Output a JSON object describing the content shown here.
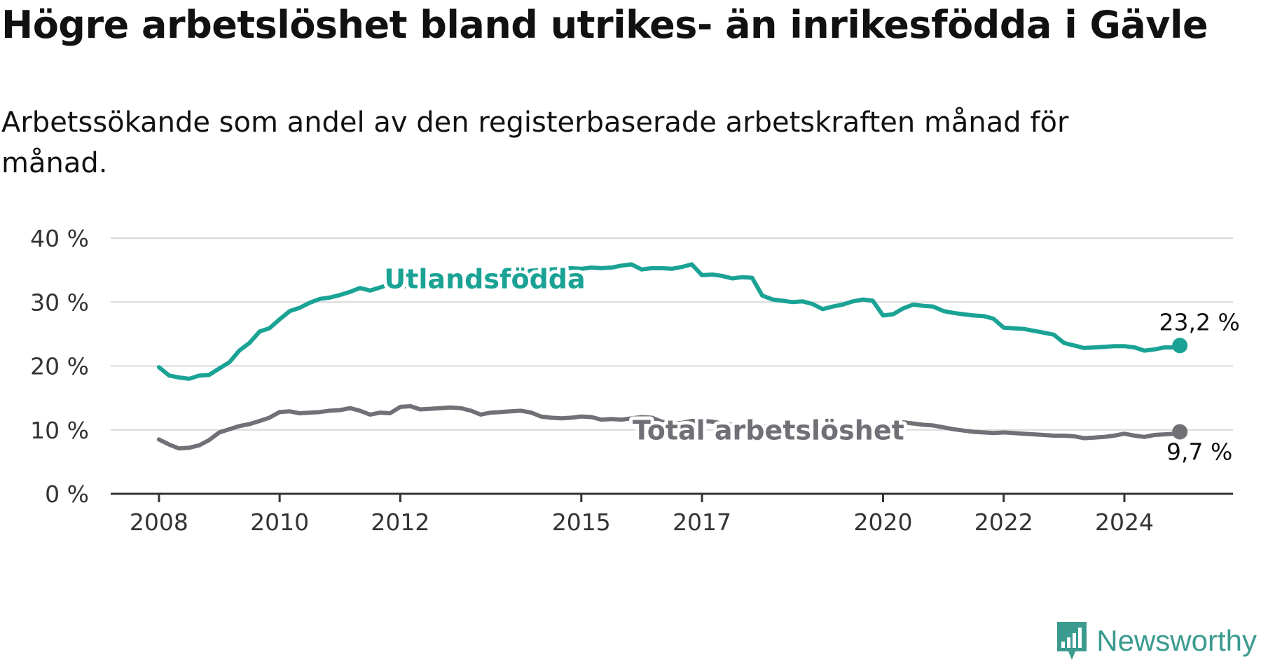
{
  "title": "Högre arbetslöshet bland utrikes- än inrikesfödda i Gävle",
  "subtitle": "Arbetssökande som andel av den registerbaserade arbetskraften månad för månad.",
  "brand": {
    "name": "Newsworthy",
    "color": "#3a9b8e"
  },
  "chart_data": {
    "type": "line",
    "x_ticks": [
      "2008",
      "2010",
      "2012",
      "2015",
      "2017",
      "2020",
      "2022",
      "2024"
    ],
    "y_ticks": [
      "0 %",
      "10 %",
      "20 %",
      "30 %",
      "40 %"
    ],
    "ylim": [
      0,
      40
    ],
    "xlim": [
      2007.2,
      2025.8
    ],
    "grid": true,
    "series": [
      {
        "name": "Utlandsfödda",
        "color": "#1aa395",
        "end_label": "23,2 %",
        "points": [
          [
            2008.0,
            19.8
          ],
          [
            2008.17,
            18.5
          ],
          [
            2008.33,
            18.2
          ],
          [
            2008.5,
            18.0
          ],
          [
            2008.67,
            18.5
          ],
          [
            2008.83,
            18.6
          ],
          [
            2009.0,
            19.6
          ],
          [
            2009.17,
            20.6
          ],
          [
            2009.33,
            22.4
          ],
          [
            2009.5,
            23.6
          ],
          [
            2009.67,
            25.4
          ],
          [
            2009.83,
            25.9
          ],
          [
            2010.0,
            27.3
          ],
          [
            2010.17,
            28.6
          ],
          [
            2010.33,
            29.1
          ],
          [
            2010.5,
            29.9
          ],
          [
            2010.67,
            30.5
          ],
          [
            2010.83,
            30.7
          ],
          [
            2011.0,
            31.1
          ],
          [
            2011.17,
            31.6
          ],
          [
            2011.33,
            32.2
          ],
          [
            2011.5,
            31.8
          ],
          [
            2011.67,
            32.3
          ],
          [
            2011.83,
            32.8
          ],
          [
            2012.0,
            32.4
          ],
          [
            2012.17,
            32.6
          ],
          [
            2012.33,
            33.0
          ],
          [
            2012.5,
            33.2
          ],
          [
            2012.67,
            33.4
          ],
          [
            2012.83,
            33.5
          ],
          [
            2013.0,
            33.3
          ],
          [
            2013.17,
            33.1
          ],
          [
            2013.33,
            33.0
          ],
          [
            2013.5,
            33.4
          ],
          [
            2013.67,
            33.9
          ],
          [
            2013.83,
            34.3
          ],
          [
            2014.0,
            34.6
          ],
          [
            2014.17,
            34.9
          ],
          [
            2014.33,
            35.0
          ],
          [
            2014.5,
            35.1
          ],
          [
            2014.67,
            35.2
          ],
          [
            2014.83,
            35.3
          ],
          [
            2015.0,
            35.2
          ],
          [
            2015.17,
            35.4
          ],
          [
            2015.33,
            35.3
          ],
          [
            2015.5,
            35.4
          ],
          [
            2015.67,
            35.7
          ],
          [
            2015.83,
            35.9
          ],
          [
            2016.0,
            35.1
          ],
          [
            2016.17,
            35.3
          ],
          [
            2016.33,
            35.3
          ],
          [
            2016.5,
            35.2
          ],
          [
            2016.67,
            35.5
          ],
          [
            2016.83,
            35.9
          ],
          [
            2017.0,
            34.2
          ],
          [
            2017.17,
            34.3
          ],
          [
            2017.33,
            34.1
          ],
          [
            2017.5,
            33.7
          ],
          [
            2017.67,
            33.9
          ],
          [
            2017.83,
            33.8
          ],
          [
            2018.0,
            31.0
          ],
          [
            2018.17,
            30.4
          ],
          [
            2018.33,
            30.2
          ],
          [
            2018.5,
            30.0
          ],
          [
            2018.67,
            30.1
          ],
          [
            2018.83,
            29.7
          ],
          [
            2019.0,
            28.9
          ],
          [
            2019.17,
            29.3
          ],
          [
            2019.33,
            29.6
          ],
          [
            2019.5,
            30.1
          ],
          [
            2019.67,
            30.4
          ],
          [
            2019.83,
            30.2
          ],
          [
            2020.0,
            27.9
          ],
          [
            2020.17,
            28.1
          ],
          [
            2020.33,
            29.0
          ],
          [
            2020.5,
            29.6
          ],
          [
            2020.67,
            29.4
          ],
          [
            2020.83,
            29.3
          ],
          [
            2021.0,
            28.6
          ],
          [
            2021.17,
            28.3
          ],
          [
            2021.33,
            28.1
          ],
          [
            2021.5,
            27.9
          ],
          [
            2021.67,
            27.8
          ],
          [
            2021.83,
            27.4
          ],
          [
            2022.0,
            26.0
          ],
          [
            2022.17,
            25.9
          ],
          [
            2022.33,
            25.8
          ],
          [
            2022.5,
            25.5
          ],
          [
            2022.67,
            25.2
          ],
          [
            2022.83,
            24.9
          ],
          [
            2023.0,
            23.6
          ],
          [
            2023.17,
            23.2
          ],
          [
            2023.33,
            22.8
          ],
          [
            2023.5,
            22.9
          ],
          [
            2023.67,
            23.0
          ],
          [
            2023.83,
            23.1
          ],
          [
            2024.0,
            23.1
          ],
          [
            2024.17,
            22.9
          ],
          [
            2024.33,
            22.4
          ],
          [
            2024.5,
            22.6
          ],
          [
            2024.67,
            22.9
          ],
          [
            2024.83,
            22.9
          ],
          [
            2024.92,
            23.2
          ]
        ]
      },
      {
        "name": "Total arbetslöshet",
        "color": "#707076",
        "end_label": "9,7 %",
        "points": [
          [
            2008.0,
            8.5
          ],
          [
            2008.17,
            7.7
          ],
          [
            2008.33,
            7.1
          ],
          [
            2008.5,
            7.2
          ],
          [
            2008.67,
            7.6
          ],
          [
            2008.83,
            8.4
          ],
          [
            2009.0,
            9.6
          ],
          [
            2009.17,
            10.1
          ],
          [
            2009.33,
            10.6
          ],
          [
            2009.5,
            10.9
          ],
          [
            2009.67,
            11.4
          ],
          [
            2009.83,
            11.9
          ],
          [
            2010.0,
            12.8
          ],
          [
            2010.17,
            12.9
          ],
          [
            2010.33,
            12.6
          ],
          [
            2010.5,
            12.7
          ],
          [
            2010.67,
            12.8
          ],
          [
            2010.83,
            13.0
          ],
          [
            2011.0,
            13.1
          ],
          [
            2011.17,
            13.4
          ],
          [
            2011.33,
            13.0
          ],
          [
            2011.5,
            12.4
          ],
          [
            2011.67,
            12.7
          ],
          [
            2011.83,
            12.6
          ],
          [
            2012.0,
            13.6
          ],
          [
            2012.17,
            13.7
          ],
          [
            2012.33,
            13.2
          ],
          [
            2012.5,
            13.3
          ],
          [
            2012.67,
            13.4
          ],
          [
            2012.83,
            13.5
          ],
          [
            2013.0,
            13.4
          ],
          [
            2013.17,
            13.0
          ],
          [
            2013.33,
            12.4
          ],
          [
            2013.5,
            12.7
          ],
          [
            2013.67,
            12.8
          ],
          [
            2013.83,
            12.9
          ],
          [
            2014.0,
            13.0
          ],
          [
            2014.17,
            12.7
          ],
          [
            2014.33,
            12.1
          ],
          [
            2014.5,
            11.9
          ],
          [
            2014.67,
            11.8
          ],
          [
            2014.83,
            11.9
          ],
          [
            2015.0,
            12.1
          ],
          [
            2015.17,
            12.0
          ],
          [
            2015.33,
            11.6
          ],
          [
            2015.5,
            11.7
          ],
          [
            2015.67,
            11.6
          ],
          [
            2015.83,
            11.8
          ],
          [
            2016.0,
            12.0
          ],
          [
            2016.17,
            11.9
          ],
          [
            2016.33,
            11.3
          ],
          [
            2016.5,
            11.0
          ],
          [
            2016.67,
            11.1
          ],
          [
            2016.83,
            11.4
          ],
          [
            2017.0,
            11.4
          ],
          [
            2017.17,
            11.3
          ],
          [
            2017.33,
            11.0
          ],
          [
            2017.5,
            10.8
          ],
          [
            2017.67,
            10.9
          ],
          [
            2017.83,
            10.9
          ],
          [
            2018.0,
            10.6
          ],
          [
            2018.17,
            10.5
          ],
          [
            2018.33,
            10.3
          ],
          [
            2018.5,
            10.2
          ],
          [
            2018.67,
            10.3
          ],
          [
            2018.83,
            10.1
          ],
          [
            2019.0,
            10.0
          ],
          [
            2019.17,
            10.1
          ],
          [
            2019.33,
            10.2
          ],
          [
            2019.5,
            10.4
          ],
          [
            2019.67,
            10.5
          ],
          [
            2019.83,
            10.4
          ],
          [
            2020.0,
            10.6
          ],
          [
            2020.17,
            10.9
          ],
          [
            2020.33,
            11.2
          ],
          [
            2020.5,
            11.0
          ],
          [
            2020.67,
            10.8
          ],
          [
            2020.83,
            10.7
          ],
          [
            2021.0,
            10.4
          ],
          [
            2021.17,
            10.1
          ],
          [
            2021.33,
            9.9
          ],
          [
            2021.5,
            9.7
          ],
          [
            2021.67,
            9.6
          ],
          [
            2021.83,
            9.5
          ],
          [
            2022.0,
            9.6
          ],
          [
            2022.17,
            9.5
          ],
          [
            2022.33,
            9.4
          ],
          [
            2022.5,
            9.3
          ],
          [
            2022.67,
            9.2
          ],
          [
            2022.83,
            9.1
          ],
          [
            2023.0,
            9.1
          ],
          [
            2023.17,
            9.0
          ],
          [
            2023.33,
            8.7
          ],
          [
            2023.5,
            8.8
          ],
          [
            2023.67,
            8.9
          ],
          [
            2023.83,
            9.1
          ],
          [
            2024.0,
            9.4
          ],
          [
            2024.17,
            9.1
          ],
          [
            2024.33,
            8.9
          ],
          [
            2024.5,
            9.2
          ],
          [
            2024.67,
            9.3
          ],
          [
            2024.83,
            9.4
          ],
          [
            2024.92,
            9.7
          ]
        ]
      }
    ],
    "annotations": [
      {
        "series": "Utlandsfödda",
        "text": "Utlandsfödda",
        "x": 2013.4,
        "y": 33.5
      },
      {
        "series": "Total arbetslöshet",
        "text": "Total arbetslöshet",
        "x": 2018.1,
        "y": 9.8
      }
    ]
  }
}
